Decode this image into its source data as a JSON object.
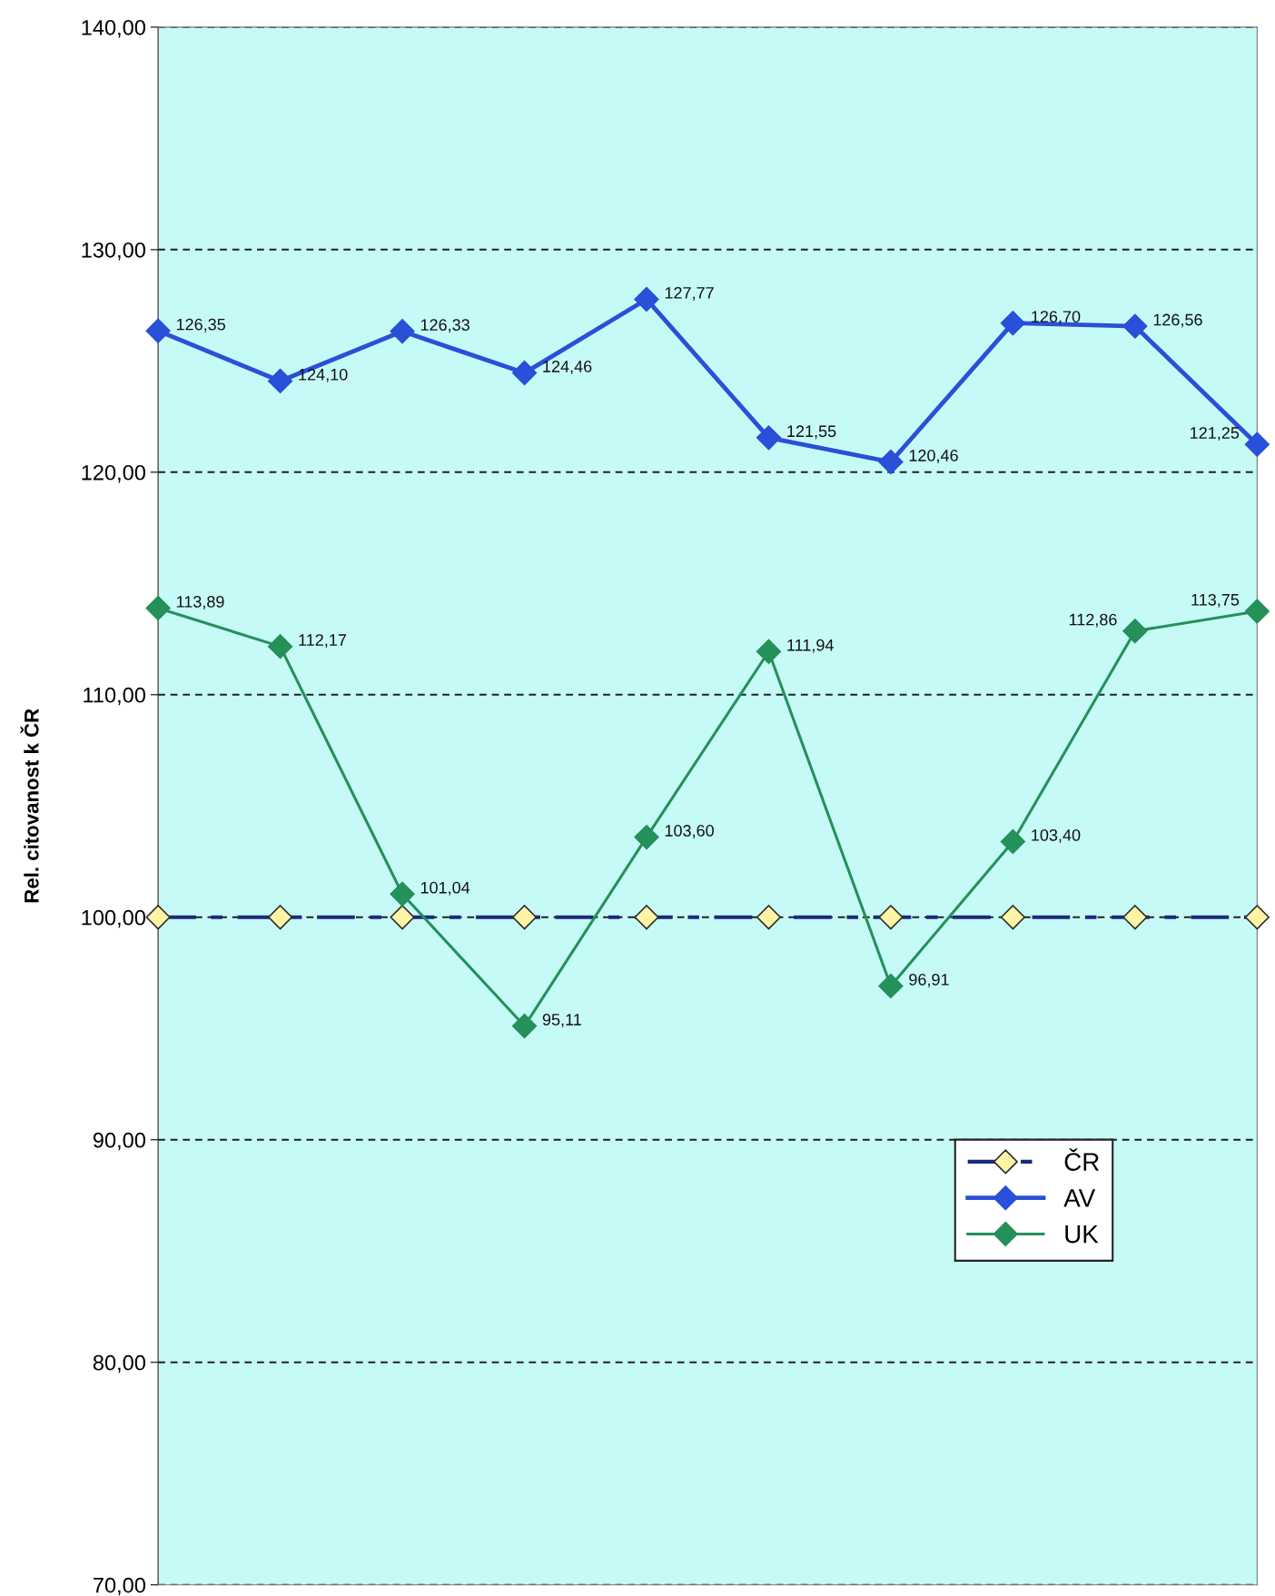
{
  "chart_data": {
    "type": "line",
    "ylabel": "Rel. citovanost k ČR",
    "categories": [
      null,
      null,
      null,
      null,
      null,
      null,
      null,
      null,
      null,
      null
    ],
    "series": [
      {
        "name": "ČR",
        "color": "#1c2a7a",
        "marker": "diamond",
        "line_style": "dashed",
        "values": [
          100,
          100,
          100,
          100,
          100,
          100,
          100,
          100,
          100,
          100
        ]
      },
      {
        "name": "AV",
        "color": "#2a4fd8",
        "marker": "diamond",
        "line_style": "solid",
        "values": [
          126.35,
          124.1,
          126.33,
          124.46,
          127.77,
          121.55,
          120.46,
          126.7,
          126.56,
          121.25
        ],
        "value_labels": [
          "126,35",
          "124,10",
          "126,33",
          "124,46",
          "127,77",
          "121,55",
          "120,46",
          "126,70",
          "126,56",
          "121,25"
        ]
      },
      {
        "name": "UK",
        "color": "#24905a",
        "marker": "diamond",
        "line_style": "solid",
        "values": [
          113.89,
          112.17,
          101.04,
          95.11,
          103.6,
          111.94,
          96.91,
          103.4,
          112.86,
          113.75
        ],
        "value_labels": [
          "113,89",
          "112,17",
          "101,04",
          "95,11",
          "103,60",
          "111,94",
          "96,91",
          "103,40",
          "112,86",
          "113,75"
        ]
      }
    ],
    "ylim": [
      70,
      140
    ],
    "yticks": [
      {
        "value": 70,
        "label": "70,00"
      },
      {
        "value": 80,
        "label": "80,00"
      },
      {
        "value": 90,
        "label": "90,00"
      },
      {
        "value": 100,
        "label": "100,00"
      },
      {
        "value": 110,
        "label": "110,00"
      },
      {
        "value": 120,
        "label": "120,00"
      },
      {
        "value": 130,
        "label": "130,00"
      },
      {
        "value": 140,
        "label": "140,00"
      }
    ],
    "grid": "y",
    "legend": "lower right",
    "tick_labels": "y"
  }
}
